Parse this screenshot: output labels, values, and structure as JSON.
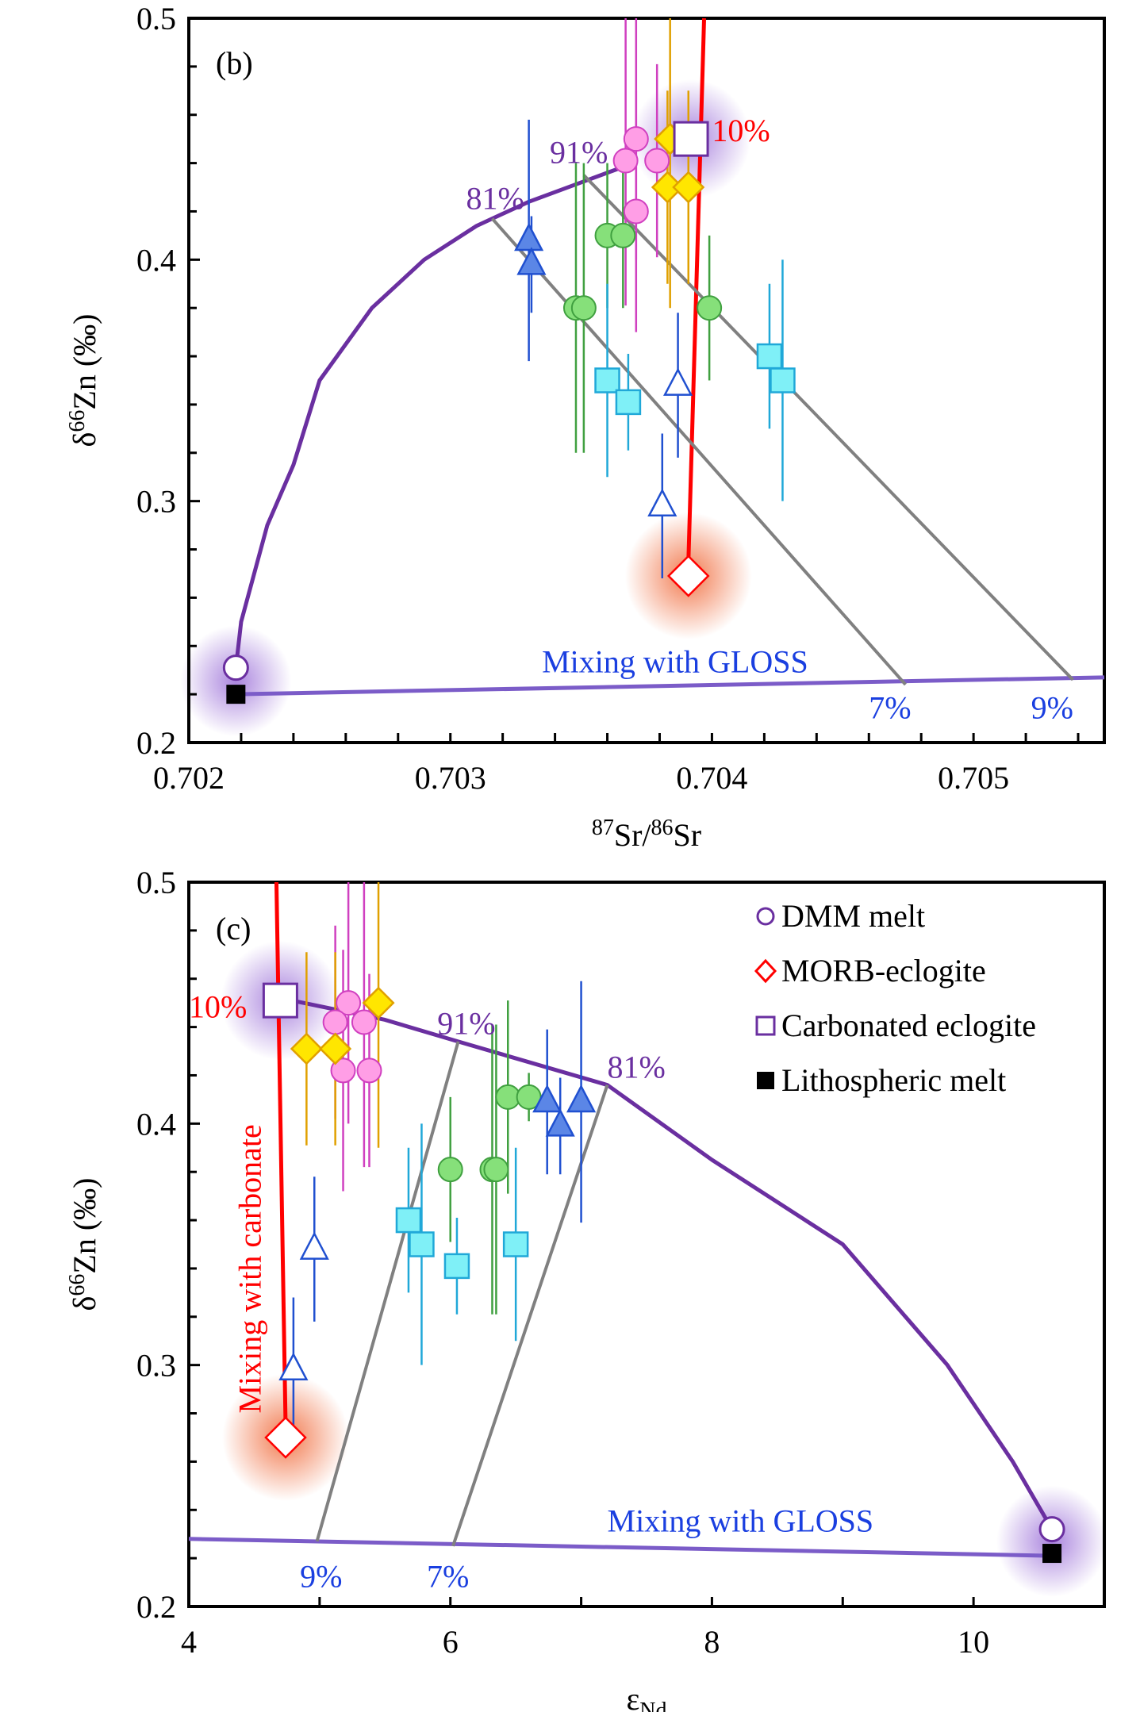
{
  "colors": {
    "dmm": "#6a2fa0",
    "morb": "#ff0000",
    "carb": "#6a2fa0",
    "litho": "#000000",
    "gloss_label": "#1a3fe0",
    "gloss_line": "#7b5cc8",
    "tie": "#808080",
    "pink": "#ff9ee6",
    "yellow": "#ffe600",
    "green": "#86e07a",
    "blue_tri": "#5b86e6",
    "cyan": "#7ff0f7"
  },
  "chart_data": [
    {
      "panel_label": "(b)",
      "type": "scatter",
      "xlabel": {
        "sup1": "87",
        "t1": "Sr/",
        "sup2": "86",
        "t2": "Sr"
      },
      "ylabel": {
        "t1": "δ",
        "sup": "66",
        "t2": "Zn (‰)"
      },
      "xlim": [
        0.702,
        0.7055
      ],
      "ylim": [
        0.2,
        0.5
      ],
      "xticks": [
        "0.702",
        "0.703",
        "0.704",
        "0.705"
      ],
      "yticks": [
        "0.2",
        "0.3",
        "0.4",
        "0.5"
      ],
      "endmembers": {
        "dmm": [
          0.70218,
          0.231
        ],
        "litho": [
          0.70218,
          0.22
        ],
        "morb": [
          0.70391,
          0.269
        ],
        "carb": [
          0.70392,
          0.45
        ]
      },
      "curves": [
        {
          "kind": "dmm-carb",
          "points": [
            [
              0.70218,
              0.231
            ],
            [
              0.7022,
              0.25
            ],
            [
              0.70225,
              0.27
            ],
            [
              0.7023,
              0.29
            ],
            [
              0.7024,
              0.315
            ],
            [
              0.7025,
              0.35
            ],
            [
              0.7027,
              0.38
            ],
            [
              0.7029,
              0.4
            ],
            [
              0.7031,
              0.414
            ],
            [
              0.7033,
              0.424
            ],
            [
              0.7035,
              0.432
            ],
            [
              0.7037,
              0.44
            ]
          ]
        },
        {
          "kind": "carbonate",
          "points": [
            [
              0.70391,
              0.275
            ],
            [
              0.70397,
              0.5
            ]
          ]
        },
        {
          "kind": "gloss",
          "points": [
            [
              0.70218,
              0.22
            ],
            [
              0.7055,
              0.227
            ]
          ]
        },
        {
          "kind": "tie",
          "points": [
            [
              0.70316,
              0.417
            ],
            [
              0.70474,
              0.224
            ]
          ]
        },
        {
          "kind": "tie",
          "points": [
            [
              0.70351,
              0.435
            ],
            [
              0.70538,
              0.226
            ]
          ]
        }
      ],
      "annotations": [
        {
          "text": "81%",
          "at": [
            0.70306,
            0.421
          ],
          "color": "#6a2fa0"
        },
        {
          "text": "91%",
          "at": [
            0.70338,
            0.44
          ],
          "color": "#6a2fa0"
        },
        {
          "text": "10%",
          "at": [
            0.704,
            0.449
          ],
          "color": "#ff0000"
        },
        {
          "text": "Mixing with GLOSS",
          "at": [
            0.70335,
            0.229
          ],
          "color": "#1a3fe0"
        },
        {
          "text": "7%",
          "at": [
            0.7046,
            0.21
          ],
          "color": "#1a3fe0"
        },
        {
          "text": "9%",
          "at": [
            0.70522,
            0.21
          ],
          "color": "#1a3fe0"
        }
      ],
      "groups": [
        {
          "marker": "circle",
          "color": "#ff9ee6",
          "edge": "#d040c0",
          "points": [
            [
              0.70371,
              0.45,
              0.05
            ],
            [
              0.70367,
              0.441,
              0.06
            ],
            [
              0.70379,
              0.441,
              0.04
            ],
            [
              0.70371,
              0.42,
              0.05
            ]
          ]
        },
        {
          "marker": "diamond",
          "color": "#ffe600",
          "edge": "#e0a000",
          "points": [
            [
              0.70384,
              0.45,
              0.07
            ],
            [
              0.70383,
              0.43,
              0.04
            ],
            [
              0.70391,
              0.43,
              0.04
            ]
          ]
        },
        {
          "marker": "circle",
          "color": "#86e07a",
          "edge": "#40a040",
          "points": [
            [
              0.7036,
              0.41,
              0.03
            ],
            [
              0.70366,
              0.41,
              0.03
            ],
            [
              0.70348,
              0.38,
              0.06
            ],
            [
              0.70351,
              0.38,
              0.06
            ],
            [
              0.70399,
              0.38,
              0.03
            ]
          ]
        },
        {
          "marker": "triangle",
          "color": "#5b86e6",
          "edge": "#2050d0",
          "points": [
            [
              0.7033,
              0.408,
              0.05
            ],
            [
              0.70331,
              0.398,
              0.02
            ]
          ]
        },
        {
          "marker": "triangle-open",
          "color": "#ffffff",
          "edge": "#2050d0",
          "points": [
            [
              0.70381,
              0.298,
              0.03
            ],
            [
              0.70387,
              0.348,
              0.03
            ]
          ]
        },
        {
          "marker": "square",
          "color": "#7ff0f7",
          "edge": "#20a8d8",
          "points": [
            [
              0.7036,
              0.35,
              0.04
            ],
            [
              0.70368,
              0.341,
              0.02
            ],
            [
              0.70422,
              0.36,
              0.03
            ],
            [
              0.70427,
              0.35,
              0.05
            ]
          ]
        }
      ]
    },
    {
      "panel_label": "(c)",
      "type": "scatter",
      "xlabel": {
        "t1": "ε",
        "sub": "Nd"
      },
      "ylabel": {
        "t1": "δ",
        "sup": "66",
        "t2": "Zn (‰)"
      },
      "xlim": [
        4,
        11
      ],
      "ylim": [
        0.2,
        0.5
      ],
      "xticks": [
        "4",
        "6",
        "8",
        "10"
      ],
      "yticks": [
        "0.2",
        "0.3",
        "0.4",
        "0.5"
      ],
      "endmembers": {
        "dmm": [
          10.6,
          0.232
        ],
        "litho": [
          10.6,
          0.222
        ],
        "morb": [
          4.74,
          0.27
        ],
        "carb": [
          4.7,
          0.451
        ]
      },
      "curves": [
        {
          "kind": "dmm-carb",
          "points": [
            [
              4.7,
              0.452
            ],
            [
              5.5,
              0.443
            ],
            [
              6.06,
              0.434
            ],
            [
              7.2,
              0.416
            ],
            [
              8,
              0.385
            ],
            [
              9,
              0.35
            ],
            [
              9.8,
              0.3
            ],
            [
              10.3,
              0.26
            ],
            [
              10.6,
              0.232
            ]
          ]
        },
        {
          "kind": "carbonate",
          "points": [
            [
              4.74,
              0.275
            ],
            [
              4.67,
              0.5
            ]
          ]
        },
        {
          "kind": "gloss",
          "points": [
            [
              4,
              0.228
            ],
            [
              10.6,
              0.221
            ]
          ]
        },
        {
          "kind": "tie",
          "points": [
            [
              4.98,
              0.227
            ],
            [
              6.06,
              0.434
            ]
          ]
        },
        {
          "kind": "tie",
          "points": [
            [
              6.02,
              0.225
            ],
            [
              7.2,
              0.416
            ]
          ]
        }
      ],
      "annotations": [
        {
          "text": "91%",
          "at": [
            5.9,
            0.437
          ],
          "color": "#6a2fa0"
        },
        {
          "text": "81%",
          "at": [
            7.2,
            0.419
          ],
          "color": "#6a2fa0"
        },
        {
          "text": "10%",
          "at": [
            4.0,
            0.444
          ],
          "color": "#ff0000"
        },
        {
          "text": "Mixing with GLOSS",
          "at": [
            7.2,
            0.231
          ],
          "color": "#1a3fe0"
        },
        {
          "text": "9%",
          "at": [
            4.85,
            0.208
          ],
          "color": "#1a3fe0"
        },
        {
          "text": "7%",
          "at": [
            5.82,
            0.208
          ],
          "color": "#1a3fe0"
        },
        {
          "text": "Mixing with carbonate",
          "at": [
            4.55,
            0.28
          ],
          "color": "#ff0000",
          "rotate": true
        }
      ],
      "legend": {
        "placement": "top-right",
        "items": [
          {
            "label": "DMM melt",
            "marker": "circle-open",
            "color": "#6a2fa0"
          },
          {
            "label": "MORB-eclogite",
            "marker": "diamond-open",
            "color": "#ff0000"
          },
          {
            "label": "Carbonated eclogite",
            "marker": "square-open",
            "color": "#6a2fa0"
          },
          {
            "label": "Lithospheric melt",
            "marker": "square-filled",
            "color": "#000000"
          }
        ]
      },
      "groups": [
        {
          "marker": "circle",
          "color": "#ff9ee6",
          "edge": "#d040c0",
          "points": [
            [
              5.22,
              0.45,
              0.05
            ],
            [
              5.12,
              0.442,
              0.04
            ],
            [
              5.34,
              0.442,
              0.06
            ],
            [
              5.18,
              0.422,
              0.05
            ],
            [
              5.38,
              0.422,
              0.04
            ]
          ]
        },
        {
          "marker": "diamond",
          "color": "#ffe600",
          "edge": "#e0a000",
          "points": [
            [
              5.45,
              0.45,
              0.06
            ],
            [
              4.9,
              0.431,
              0.04
            ],
            [
              5.12,
              0.431,
              0.04
            ]
          ]
        },
        {
          "marker": "circle",
          "color": "#86e07a",
          "edge": "#40a040",
          "points": [
            [
              6.44,
              0.411,
              0.04
            ],
            [
              6.6,
              0.411,
              0.01
            ],
            [
              6.0,
              0.381,
              0.03
            ],
            [
              6.32,
              0.381,
              0.06
            ],
            [
              6.35,
              0.381,
              0.06
            ]
          ]
        },
        {
          "marker": "triangle",
          "color": "#5b86e6",
          "edge": "#2050d0",
          "points": [
            [
              6.74,
              0.409,
              0.03
            ],
            [
              6.84,
              0.399,
              0.02
            ],
            [
              7.0,
              0.409,
              0.05
            ]
          ]
        },
        {
          "marker": "triangle-open",
          "color": "#ffffff",
          "edge": "#2050d0",
          "points": [
            [
              4.8,
              0.298,
              0.03
            ],
            [
              4.96,
              0.348,
              0.03
            ]
          ]
        },
        {
          "marker": "square",
          "color": "#7ff0f7",
          "edge": "#20a8d8",
          "points": [
            [
              5.68,
              0.36,
              0.03
            ],
            [
              5.78,
              0.35,
              0.05
            ],
            [
              6.05,
              0.341,
              0.02
            ],
            [
              6.5,
              0.35,
              0.04
            ]
          ]
        }
      ]
    }
  ]
}
